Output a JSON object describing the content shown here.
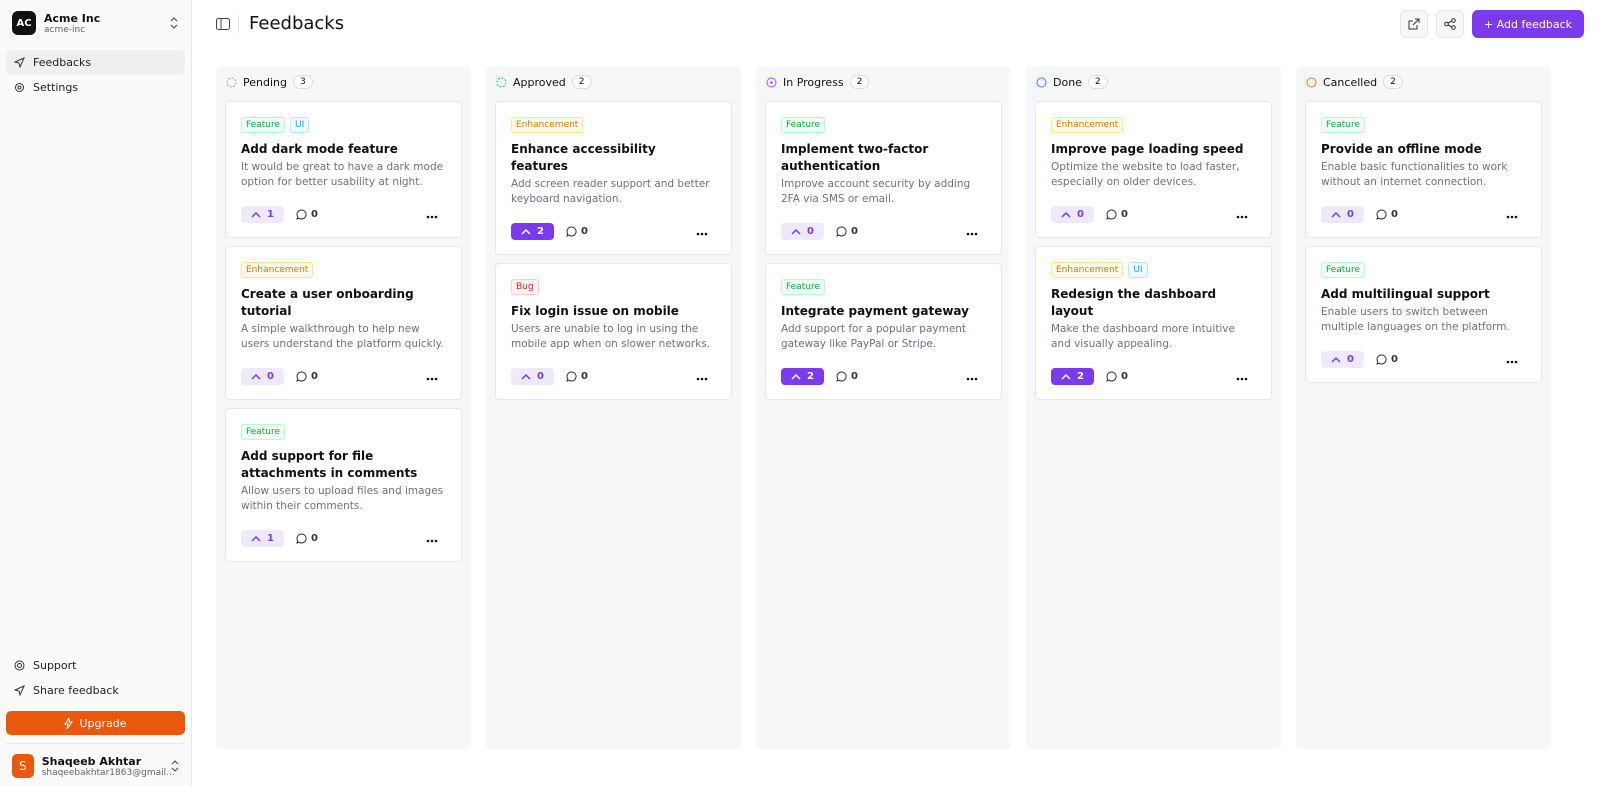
{
  "sidebar": {
    "org_initials": "AC",
    "org_name": "Acme Inc",
    "org_slug": "acme-inc",
    "nav": [
      "Feedbacks",
      "Settings"
    ],
    "footer_nav": [
      "Support",
      "Share feedback"
    ],
    "upgrade": "Upgrade",
    "user": {
      "initial": "S",
      "name": "Shaqeeb Akhtar",
      "email": "shaqeebakhtar1863@gmail..."
    }
  },
  "header": {
    "title": "Feedbacks",
    "add_button": "+ Add feedback"
  },
  "columns": [
    {
      "name": "Pending",
      "count": 3,
      "color": "#9ca3af",
      "cards": [
        {
          "tags": [
            {
              "label": "Feature",
              "color": "green"
            },
            {
              "label": "UI",
              "color": "blue"
            }
          ],
          "title": "Add dark mode feature",
          "description": "It would be great to have a dark mode option for better usability at night.",
          "upvotes": 1,
          "comments": 0,
          "upvoted": false
        },
        {
          "tags": [
            {
              "label": "Enhancement",
              "color": "amber"
            }
          ],
          "title": "Create a user onboarding tutorial",
          "description": "A simple walkthrough to help new users understand the platform quickly.",
          "upvotes": 0,
          "comments": 0,
          "upvoted": false
        },
        {
          "tags": [
            {
              "label": "Feature",
              "color": "green"
            }
          ],
          "title": "Add support for file attachments in comments",
          "description": "Allow users to upload files and images within their comments.",
          "upvotes": 1,
          "comments": 0,
          "upvoted": false
        }
      ]
    },
    {
      "name": "Approved",
      "count": 2,
      "color": "#22c55e",
      "cards": [
        {
          "tags": [
            {
              "label": "Enhancement",
              "color": "amber"
            }
          ],
          "title": "Enhance accessibility features",
          "description": "Add screen reader support and better keyboard navigation.",
          "upvotes": 2,
          "comments": 0,
          "upvoted": true
        },
        {
          "tags": [
            {
              "label": "Bug",
              "color": "red"
            }
          ],
          "title": "Fix login issue on mobile",
          "description": "Users are unable to log in using the mobile app when on slower networks.",
          "upvotes": 0,
          "comments": 0,
          "upvoted": false
        }
      ]
    },
    {
      "name": "In Progress",
      "count": 2,
      "color": "#a855f7",
      "cards": [
        {
          "tags": [
            {
              "label": "Feature",
              "color": "green"
            }
          ],
          "title": "Implement two-factor authentication",
          "description": "Improve account security by adding 2FA via SMS or email.",
          "upvotes": 0,
          "comments": 0,
          "upvoted": false
        },
        {
          "tags": [
            {
              "label": "Feature",
              "color": "green"
            }
          ],
          "title": "Integrate payment gateway",
          "description": "Add support for a popular payment gateway like PayPal or Stripe.",
          "upvotes": 2,
          "comments": 0,
          "upvoted": true
        }
      ]
    },
    {
      "name": "Done",
      "count": 2,
      "color": "#3b82f6",
      "cards": [
        {
          "tags": [
            {
              "label": "Enhancement",
              "color": "amber"
            }
          ],
          "title": "Improve page loading speed",
          "description": "Optimize the website to load faster, especially on older devices.",
          "upvotes": 0,
          "comments": 0,
          "upvoted": false
        },
        {
          "tags": [
            {
              "label": "Enhancement",
              "color": "amber"
            },
            {
              "label": "UI",
              "color": "blue"
            }
          ],
          "title": "Redesign the dashboard layout",
          "description": "Make the dashboard more intuitive and visually appealing.",
          "upvotes": 2,
          "comments": 0,
          "upvoted": true
        }
      ]
    },
    {
      "name": "Cancelled",
      "count": 2,
      "color": "#f97316",
      "cards": [
        {
          "tags": [
            {
              "label": "Feature",
              "color": "green"
            }
          ],
          "title": "Provide an offline mode",
          "description": "Enable basic functionalities to work without an internet connection.",
          "upvotes": 0,
          "comments": 0,
          "upvoted": false
        },
        {
          "tags": [
            {
              "label": "Feature",
              "color": "green"
            }
          ],
          "title": "Add multilingual support",
          "description": "Enable users to switch between multiple languages on the platform.",
          "upvotes": 0,
          "comments": 0,
          "upvoted": false
        }
      ]
    }
  ]
}
